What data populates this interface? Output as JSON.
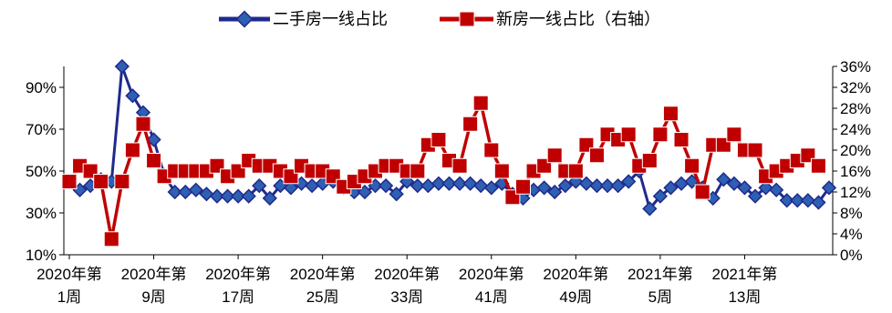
{
  "chart_data": {
    "type": "line",
    "title": "",
    "legend": {
      "position": "top-center",
      "entries": [
        "二手房一线占比",
        "新房一线占比（右轴）"
      ]
    },
    "grid": false,
    "x_tick_labels": [
      [
        "2020年第",
        "1周"
      ],
      [
        "2020年第",
        "9周"
      ],
      [
        "2020年第",
        "17周"
      ],
      [
        "2020年第",
        "25周"
      ],
      [
        "2020年第",
        "33周"
      ],
      [
        "2020年第",
        "41周"
      ],
      [
        "2020年第",
        "49周"
      ],
      [
        "2021年第",
        "5周"
      ],
      [
        "2021年第",
        "13周"
      ]
    ],
    "x_tick_every": 8,
    "left_axis": {
      "ylim": [
        10,
        100
      ],
      "ticks": [
        10,
        30,
        50,
        70,
        90
      ],
      "unit": "%"
    },
    "right_axis": {
      "ylim": [
        0,
        36
      ],
      "ticks": [
        0,
        4,
        8,
        12,
        16,
        20,
        24,
        28,
        32,
        36
      ],
      "unit": "%"
    },
    "series": [
      {
        "name": "二手房一线占比",
        "axis": "left",
        "color": "#1f2a8c",
        "marker": "diamond",
        "values": [
          45,
          41,
          43,
          46,
          45,
          100,
          86,
          78,
          65,
          48,
          40,
          40,
          41,
          39,
          38,
          38,
          38,
          38,
          43,
          37,
          43,
          42,
          44,
          43,
          44,
          45,
          42,
          40,
          40,
          43,
          43,
          39,
          45,
          43,
          43,
          44,
          44,
          44,
          44,
          43,
          42,
          44,
          39,
          37,
          41,
          42,
          40,
          43,
          45,
          44,
          43,
          43,
          43,
          45,
          50,
          32,
          38,
          42,
          44,
          45,
          42,
          37,
          46,
          44,
          42,
          38,
          42,
          41,
          36,
          36,
          36,
          35,
          42
        ]
      },
      {
        "name": "新房一线占比（右轴）",
        "axis": "right",
        "color": "#c00000",
        "marker": "square",
        "values": [
          14,
          17,
          16,
          14,
          3,
          14,
          20,
          25,
          18,
          15,
          16,
          16,
          16,
          16,
          17,
          15,
          16,
          18,
          17,
          17,
          16,
          15,
          17,
          16,
          16,
          15,
          13,
          14,
          15,
          16,
          17,
          17,
          16,
          16,
          21,
          22,
          18,
          17,
          25,
          29,
          20,
          16,
          11,
          13,
          16,
          17,
          19,
          16,
          16,
          21,
          19,
          23,
          22,
          23,
          17,
          18,
          23,
          27,
          22,
          17,
          12,
          21,
          21,
          23,
          20,
          20,
          15,
          16,
          17,
          18,
          19,
          17
        ]
      }
    ]
  }
}
